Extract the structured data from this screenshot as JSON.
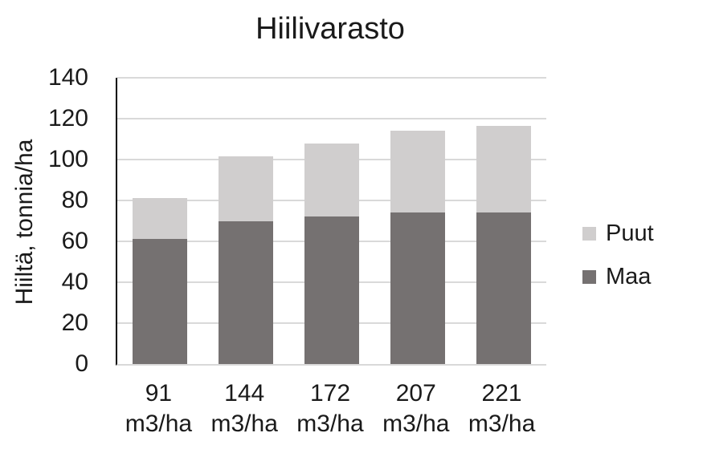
{
  "chart_data": {
    "type": "bar",
    "stacked": true,
    "title": "Hiilivarasto",
    "xlabel": "",
    "ylabel": "Hiiltä, tonnia/ha",
    "categories": [
      "91 m3/ha",
      "144 m3/ha",
      "172 m3/ha",
      "207 m3/ha",
      "221 m3/ha"
    ],
    "x_tick_lines": [
      [
        "91",
        "m3/ha"
      ],
      [
        "144",
        "m3/ha"
      ],
      [
        "172",
        "m3/ha"
      ],
      [
        "207",
        "m3/ha"
      ],
      [
        "221",
        "m3/ha"
      ]
    ],
    "series": [
      {
        "name": "Maa",
        "color": "#757171",
        "values": [
          61,
          70,
          72,
          74,
          74
        ]
      },
      {
        "name": "Puut",
        "color": "#d0cece",
        "values": [
          20,
          31.5,
          36,
          40,
          42.5
        ]
      }
    ],
    "totals": [
      81,
      101.5,
      108,
      114,
      116.5
    ],
    "ylim": [
      0,
      140
    ],
    "y_ticks": [
      0,
      20,
      40,
      60,
      80,
      100,
      120,
      140
    ],
    "grid": true,
    "legend_position": "right",
    "legend_order": [
      "Puut",
      "Maa"
    ]
  },
  "colors": {
    "background": "#ffffff",
    "gridline": "#d9d9d9",
    "axis_line": "#000000",
    "text": "#1a1a1a",
    "series_maa": "#757171",
    "series_puut": "#d0cece"
  }
}
